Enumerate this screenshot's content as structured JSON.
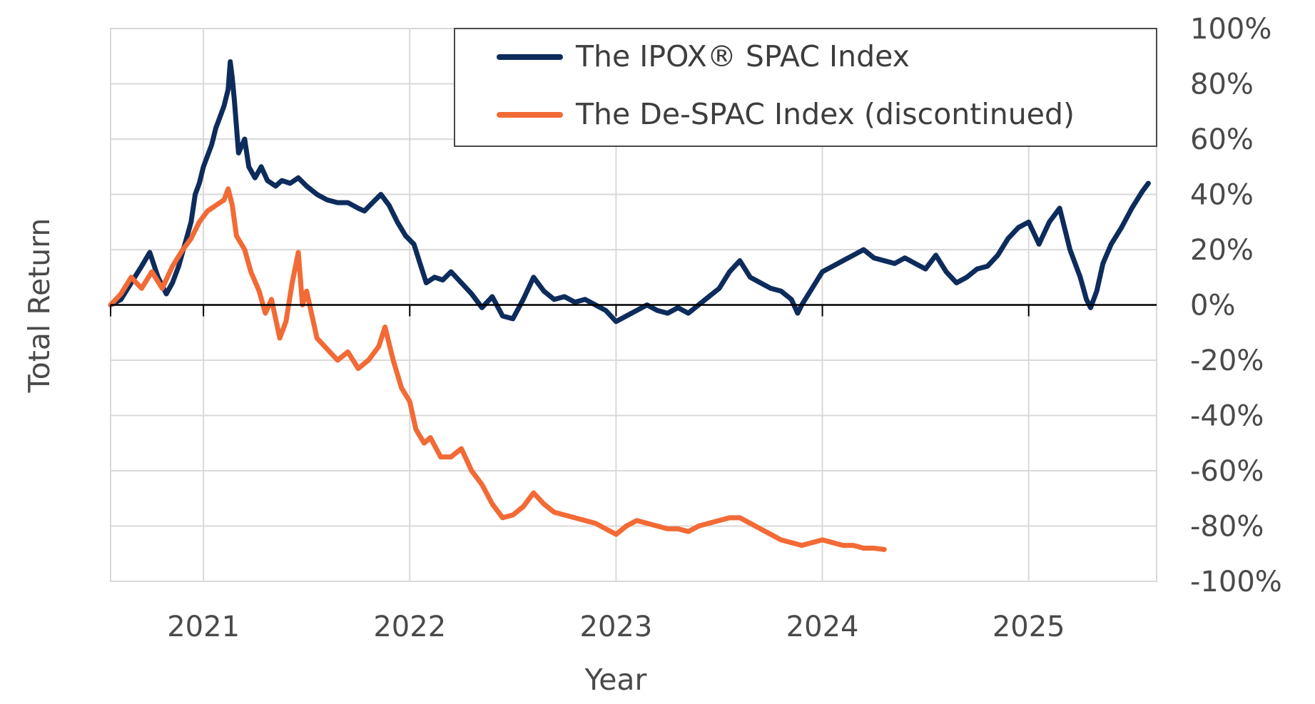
{
  "chart_data": {
    "type": "line",
    "title": "",
    "xlabel": "Year",
    "ylabel": "Total Return",
    "x_axis": {
      "range": [
        2020.55,
        2025.62
      ],
      "ticks": [
        2021,
        2022,
        2023,
        2024,
        2025
      ],
      "tick_labels": [
        "2021",
        "2022",
        "2023",
        "2024",
        "2025"
      ]
    },
    "y_axis": {
      "position": "right",
      "range": [
        -100,
        100
      ],
      "ticks": [
        100,
        80,
        60,
        40,
        20,
        0,
        -20,
        -40,
        -60,
        -80,
        -100
      ],
      "tick_labels": [
        "100%",
        "80%",
        "60%",
        "40%",
        "20%",
        "0%",
        "-20%",
        "-40%",
        "-60%",
        "-80%",
        "-100%"
      ]
    },
    "grid": true,
    "legend_position": "top-right",
    "series": [
      {
        "name": "The IPOX® SPAC Index",
        "color": "#0d2c5c",
        "points": [
          [
            2020.55,
            0
          ],
          [
            2020.6,
            2
          ],
          [
            2020.65,
            8
          ],
          [
            2020.7,
            14
          ],
          [
            2020.74,
            19
          ],
          [
            2020.78,
            10
          ],
          [
            2020.82,
            4
          ],
          [
            2020.85,
            8
          ],
          [
            2020.88,
            14
          ],
          [
            2020.91,
            22
          ],
          [
            2020.94,
            30
          ],
          [
            2020.96,
            40
          ],
          [
            2020.98,
            44
          ],
          [
            2021.0,
            50
          ],
          [
            2021.02,
            54
          ],
          [
            2021.04,
            58
          ],
          [
            2021.06,
            64
          ],
          [
            2021.08,
            68
          ],
          [
            2021.1,
            72
          ],
          [
            2021.12,
            78
          ],
          [
            2021.13,
            88
          ],
          [
            2021.14,
            82
          ],
          [
            2021.15,
            74
          ],
          [
            2021.17,
            55
          ],
          [
            2021.2,
            60
          ],
          [
            2021.22,
            50
          ],
          [
            2021.25,
            46
          ],
          [
            2021.28,
            50
          ],
          [
            2021.31,
            45
          ],
          [
            2021.35,
            43
          ],
          [
            2021.38,
            45
          ],
          [
            2021.42,
            44
          ],
          [
            2021.46,
            46
          ],
          [
            2021.5,
            43
          ],
          [
            2021.55,
            40
          ],
          [
            2021.6,
            38
          ],
          [
            2021.65,
            37
          ],
          [
            2021.7,
            37
          ],
          [
            2021.75,
            35
          ],
          [
            2021.78,
            34
          ],
          [
            2021.82,
            37
          ],
          [
            2021.86,
            40
          ],
          [
            2021.9,
            36
          ],
          [
            2021.94,
            30
          ],
          [
            2021.98,
            25
          ],
          [
            2022.02,
            22
          ],
          [
            2022.05,
            15
          ],
          [
            2022.08,
            8
          ],
          [
            2022.12,
            10
          ],
          [
            2022.16,
            9
          ],
          [
            2022.2,
            12
          ],
          [
            2022.25,
            8
          ],
          [
            2022.3,
            4
          ],
          [
            2022.35,
            -1
          ],
          [
            2022.4,
            3
          ],
          [
            2022.45,
            -4
          ],
          [
            2022.5,
            -5
          ],
          [
            2022.55,
            2
          ],
          [
            2022.6,
            10
          ],
          [
            2022.65,
            5
          ],
          [
            2022.7,
            2
          ],
          [
            2022.75,
            3
          ],
          [
            2022.8,
            1
          ],
          [
            2022.85,
            2
          ],
          [
            2022.9,
            0
          ],
          [
            2022.95,
            -2
          ],
          [
            2023.0,
            -6
          ],
          [
            2023.05,
            -4
          ],
          [
            2023.1,
            -2
          ],
          [
            2023.15,
            0
          ],
          [
            2023.2,
            -2
          ],
          [
            2023.25,
            -3
          ],
          [
            2023.3,
            -1
          ],
          [
            2023.35,
            -3
          ],
          [
            2023.4,
            0
          ],
          [
            2023.45,
            3
          ],
          [
            2023.5,
            6
          ],
          [
            2023.55,
            12
          ],
          [
            2023.6,
            16
          ],
          [
            2023.65,
            10
          ],
          [
            2023.7,
            8
          ],
          [
            2023.75,
            6
          ],
          [
            2023.8,
            5
          ],
          [
            2023.85,
            2
          ],
          [
            2023.88,
            -3
          ],
          [
            2023.9,
            0
          ],
          [
            2023.95,
            6
          ],
          [
            2024.0,
            12
          ],
          [
            2024.05,
            14
          ],
          [
            2024.1,
            16
          ],
          [
            2024.15,
            18
          ],
          [
            2024.2,
            20
          ],
          [
            2024.25,
            17
          ],
          [
            2024.3,
            16
          ],
          [
            2024.35,
            15
          ],
          [
            2024.4,
            17
          ],
          [
            2024.45,
            15
          ],
          [
            2024.5,
            13
          ],
          [
            2024.55,
            18
          ],
          [
            2024.6,
            12
          ],
          [
            2024.65,
            8
          ],
          [
            2024.7,
            10
          ],
          [
            2024.75,
            13
          ],
          [
            2024.8,
            14
          ],
          [
            2024.85,
            18
          ],
          [
            2024.9,
            24
          ],
          [
            2024.95,
            28
          ],
          [
            2025.0,
            30
          ],
          [
            2025.05,
            22
          ],
          [
            2025.1,
            30
          ],
          [
            2025.15,
            35
          ],
          [
            2025.2,
            20
          ],
          [
            2025.25,
            10
          ],
          [
            2025.28,
            2
          ],
          [
            2025.3,
            -1
          ],
          [
            2025.33,
            5
          ],
          [
            2025.36,
            15
          ],
          [
            2025.4,
            22
          ],
          [
            2025.45,
            28
          ],
          [
            2025.5,
            35
          ],
          [
            2025.55,
            41
          ],
          [
            2025.58,
            44
          ]
        ]
      },
      {
        "name": "The De-SPAC Index (discontinued)",
        "color": "#f26a35",
        "points": [
          [
            2020.55,
            0
          ],
          [
            2020.6,
            4
          ],
          [
            2020.65,
            10
          ],
          [
            2020.7,
            6
          ],
          [
            2020.75,
            12
          ],
          [
            2020.8,
            6
          ],
          [
            2020.85,
            14
          ],
          [
            2020.9,
            20
          ],
          [
            2020.94,
            24
          ],
          [
            2020.98,
            30
          ],
          [
            2021.02,
            34
          ],
          [
            2021.06,
            36
          ],
          [
            2021.1,
            38
          ],
          [
            2021.12,
            42
          ],
          [
            2021.14,
            36
          ],
          [
            2021.16,
            25
          ],
          [
            2021.2,
            20
          ],
          [
            2021.23,
            12
          ],
          [
            2021.27,
            5
          ],
          [
            2021.3,
            -3
          ],
          [
            2021.33,
            2
          ],
          [
            2021.37,
            -12
          ],
          [
            2021.4,
            -6
          ],
          [
            2021.43,
            8
          ],
          [
            2021.46,
            19
          ],
          [
            2021.48,
            0
          ],
          [
            2021.5,
            5
          ],
          [
            2021.55,
            -12
          ],
          [
            2021.6,
            -16
          ],
          [
            2021.65,
            -20
          ],
          [
            2021.7,
            -17
          ],
          [
            2021.75,
            -23
          ],
          [
            2021.8,
            -20
          ],
          [
            2021.85,
            -15
          ],
          [
            2021.88,
            -8
          ],
          [
            2021.92,
            -20
          ],
          [
            2021.96,
            -30
          ],
          [
            2022.0,
            -35
          ],
          [
            2022.03,
            -45
          ],
          [
            2022.07,
            -50
          ],
          [
            2022.1,
            -48
          ],
          [
            2022.15,
            -55
          ],
          [
            2022.2,
            -55
          ],
          [
            2022.25,
            -52
          ],
          [
            2022.3,
            -60
          ],
          [
            2022.35,
            -65
          ],
          [
            2022.4,
            -72
          ],
          [
            2022.45,
            -77
          ],
          [
            2022.5,
            -76
          ],
          [
            2022.55,
            -73
          ],
          [
            2022.6,
            -68
          ],
          [
            2022.65,
            -72
          ],
          [
            2022.7,
            -75
          ],
          [
            2022.75,
            -76
          ],
          [
            2022.8,
            -77
          ],
          [
            2022.85,
            -78
          ],
          [
            2022.9,
            -79
          ],
          [
            2022.95,
            -81
          ],
          [
            2023.0,
            -83
          ],
          [
            2023.05,
            -80
          ],
          [
            2023.1,
            -78
          ],
          [
            2023.15,
            -79
          ],
          [
            2023.2,
            -80
          ],
          [
            2023.25,
            -81
          ],
          [
            2023.3,
            -81
          ],
          [
            2023.35,
            -82
          ],
          [
            2023.4,
            -80
          ],
          [
            2023.45,
            -79
          ],
          [
            2023.5,
            -78
          ],
          [
            2023.55,
            -77
          ],
          [
            2023.6,
            -77
          ],
          [
            2023.65,
            -79
          ],
          [
            2023.7,
            -81
          ],
          [
            2023.75,
            -83
          ],
          [
            2023.8,
            -85
          ],
          [
            2023.85,
            -86
          ],
          [
            2023.9,
            -87
          ],
          [
            2023.95,
            -86
          ],
          [
            2024.0,
            -85
          ],
          [
            2024.05,
            -86
          ],
          [
            2024.1,
            -87
          ],
          [
            2024.15,
            -87
          ],
          [
            2024.2,
            -88
          ],
          [
            2024.25,
            -88
          ],
          [
            2024.3,
            -88.5
          ]
        ]
      }
    ]
  }
}
